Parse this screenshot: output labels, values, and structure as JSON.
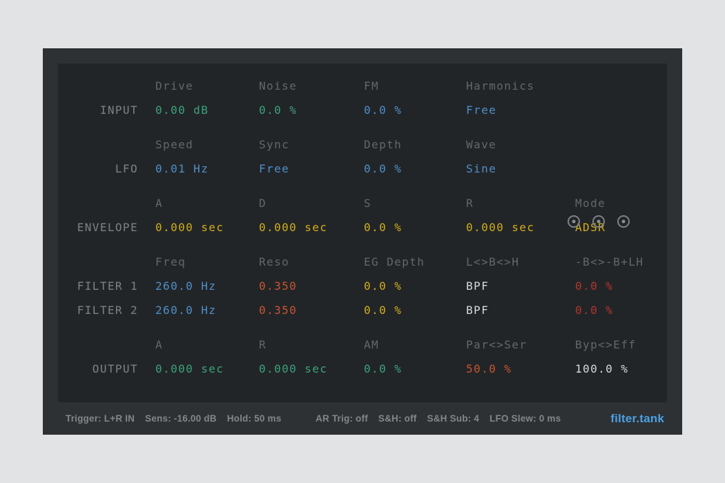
{
  "palette": {
    "page_bg": "#e2e3e5",
    "frame_bg": "#2e3134",
    "panel_bg": "#222528",
    "header_gray": "#63676b",
    "label_gray": "#7e8286",
    "green": "#3aa379",
    "blue": "#4e8fca",
    "yellow": "#d2ae1a",
    "orange": "#c85430",
    "red": "#b2362b",
    "white": "#d9dadb",
    "status_gray": "#83878b",
    "logo_blue": "#4aa0e4"
  },
  "panel": {
    "sections": [
      {
        "id": "input",
        "headers": [
          "Drive",
          "Noise",
          "FM",
          "Harmonics",
          ""
        ],
        "rows": [
          {
            "label": "INPUT",
            "cells": [
              {
                "text": "0.00 dB",
                "color": "green"
              },
              {
                "text": "0.0 %",
                "color": "green"
              },
              {
                "text": "0.0 %",
                "color": "blue"
              },
              {
                "text": "Free",
                "color": "blue"
              },
              {
                "text": "",
                "color": "white"
              }
            ]
          }
        ]
      },
      {
        "id": "lfo",
        "headers": [
          "Speed",
          "Sync",
          "Depth",
          "Wave",
          ""
        ],
        "rows": [
          {
            "label": "LFO",
            "cells": [
              {
                "text": "0.01 Hz",
                "color": "blue"
              },
              {
                "text": "Free",
                "color": "blue"
              },
              {
                "text": "0.0 %",
                "color": "blue"
              },
              {
                "text": "Sine",
                "color": "blue"
              },
              {
                "text": "",
                "color": "white"
              }
            ]
          }
        ]
      },
      {
        "id": "envelope",
        "headers": [
          "A",
          "D",
          "S",
          "R",
          "Mode"
        ],
        "rows": [
          {
            "label": "ENVELOPE",
            "cells": [
              {
                "text": "0.000 sec",
                "color": "yellow"
              },
              {
                "text": "0.000 sec",
                "color": "yellow"
              },
              {
                "text": "0.0 %",
                "color": "yellow"
              },
              {
                "text": "0.000 sec",
                "color": "yellow"
              },
              {
                "text": "ADSR",
                "color": "yellow"
              }
            ]
          }
        ]
      },
      {
        "id": "filter",
        "headers": [
          "Freq",
          "Reso",
          "EG Depth",
          "L<>B<>H",
          "-B<>-B+LH"
        ],
        "rows": [
          {
            "label": "FILTER 1",
            "cells": [
              {
                "text": "260.0 Hz",
                "color": "blue"
              },
              {
                "text": "0.350",
                "color": "orange"
              },
              {
                "text": "0.0 %",
                "color": "yellow"
              },
              {
                "text": "BPF",
                "color": "white"
              },
              {
                "text": "0.0 %",
                "color": "red"
              }
            ]
          },
          {
            "label": "FILTER 2",
            "cells": [
              {
                "text": "260.0 Hz",
                "color": "blue"
              },
              {
                "text": "0.350",
                "color": "orange"
              },
              {
                "text": "0.0 %",
                "color": "yellow"
              },
              {
                "text": "BPF",
                "color": "white"
              },
              {
                "text": "0.0 %",
                "color": "red"
              }
            ]
          }
        ]
      },
      {
        "id": "output",
        "headers": [
          "A",
          "R",
          "AM",
          "Par<>Ser",
          "Byp<>Eff"
        ],
        "rows": [
          {
            "label": "OUTPUT",
            "cells": [
              {
                "text": "0.000 sec",
                "color": "green"
              },
              {
                "text": "0.000 sec",
                "color": "green"
              },
              {
                "text": "0.0 %",
                "color": "green"
              },
              {
                "text": "50.0 %",
                "color": "orange"
              },
              {
                "text": "100.0 %",
                "color": "white"
              }
            ]
          }
        ]
      }
    ]
  },
  "lfo_indicators": {
    "icons": [
      "radio-dot-icon",
      "radio-dot-icon",
      "radio-dot-icon"
    ]
  },
  "status_bar": {
    "left_items": [
      "Trigger: L+R IN",
      "Sens: -16.00 dB",
      "Hold: 50 ms"
    ],
    "mid_items": [
      "AR Trig: off",
      "S&H: off",
      "S&H Sub: 4",
      "LFO Slew: 0 ms"
    ],
    "logo": "filter.tank"
  }
}
